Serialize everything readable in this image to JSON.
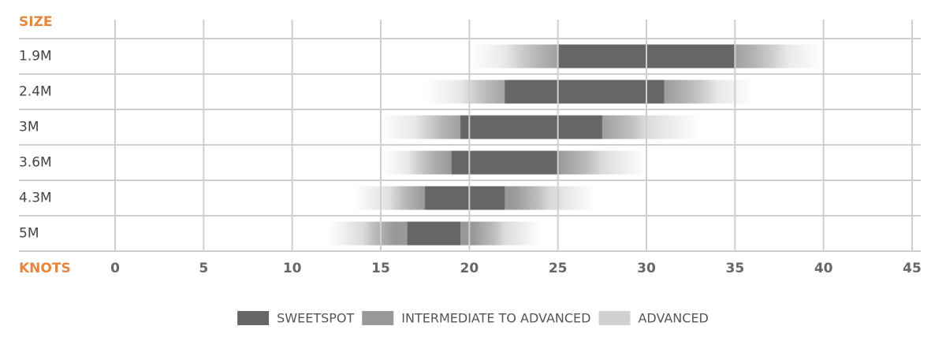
{
  "chart_data": {
    "type": "range",
    "y_label": "SIZE",
    "x_label": "KNOTS",
    "categories": [
      "1.9M",
      "2.4M",
      "3M",
      "3.6M",
      "4.3M",
      "5M"
    ],
    "series": [
      {
        "name": "SWEETSPOT",
        "color": "#666666",
        "values": [
          [
            25,
            35
          ],
          [
            22,
            31
          ],
          [
            19.5,
            27.5
          ],
          [
            19,
            25
          ],
          [
            17.5,
            22
          ],
          [
            16.5,
            19.5
          ]
        ]
      },
      {
        "name": "INTERMEDIATE TO ADVANCED",
        "color": "#999999",
        "values": [
          [
            22,
            38
          ],
          [
            19.5,
            34
          ],
          [
            17,
            30
          ],
          [
            16.5,
            27.5
          ],
          [
            15.5,
            24.5
          ],
          [
            14,
            22
          ]
        ]
      },
      {
        "name": "ADVANCED",
        "color": "#d0d0d0",
        "values": [
          [
            20,
            40
          ],
          [
            17.5,
            36
          ],
          [
            15,
            33
          ],
          [
            15,
            30
          ],
          [
            13.5,
            27
          ],
          [
            12,
            24
          ]
        ]
      }
    ],
    "xlim": [
      0,
      45
    ],
    "xticks": [
      0,
      5,
      10,
      15,
      20,
      25,
      30,
      35,
      40,
      45
    ],
    "grid": true
  }
}
